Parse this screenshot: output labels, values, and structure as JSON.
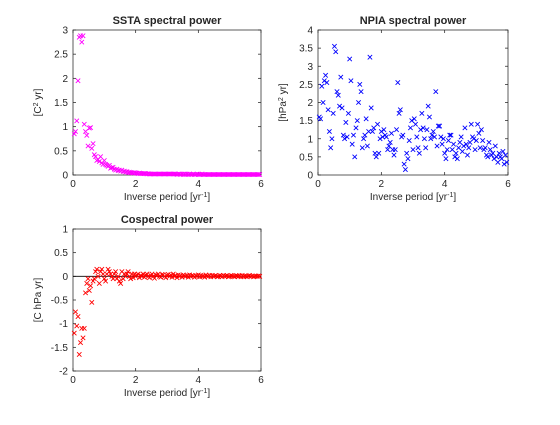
{
  "chart_data": [
    {
      "type": "scatter",
      "marker": "x",
      "title": "SSTA spectral power",
      "ylabel": "[C² yr]",
      "xlabel": "Inverse period [yr⁻¹]",
      "xlim": [
        0,
        6
      ],
      "ylim": [
        0,
        3
      ],
      "xticks": [
        "0",
        "2",
        "4",
        "6"
      ],
      "yticks": [
        "0",
        "0.5",
        "1",
        "1.5",
        "2",
        "2.5",
        "3"
      ],
      "grid": false,
      "color": "#ff00ff",
      "series": [
        {
          "x": [
            0.04,
            0.08,
            0.12,
            0.16,
            0.2,
            0.24,
            0.28,
            0.32,
            0.36,
            0.4,
            0.44,
            0.48,
            0.52,
            0.56,
            0.6,
            0.64,
            0.68,
            0.72,
            0.76,
            0.8,
            0.84,
            0.88,
            0.92,
            0.96,
            1.0,
            1.04,
            1.08,
            1.12,
            1.16,
            1.2,
            1.24,
            1.28,
            1.32,
            1.36,
            1.4,
            1.44,
            1.48,
            1.52,
            1.56,
            1.6,
            1.64,
            1.68,
            1.72,
            1.76,
            1.8,
            1.84,
            1.88,
            1.92,
            1.96,
            2.0,
            2.04,
            2.08,
            2.12,
            2.16,
            2.2,
            2.24,
            2.28,
            2.32,
            2.36,
            2.4,
            2.44,
            2.48,
            2.52,
            2.56,
            2.6,
            2.64,
            2.68,
            2.72,
            2.76,
            2.8,
            2.84,
            2.88,
            2.92,
            2.96,
            3.0,
            3.04,
            3.08,
            3.12,
            3.16,
            3.2,
            3.24,
            3.28,
            3.32,
            3.36,
            3.4,
            3.44,
            3.48,
            3.52,
            3.56,
            3.6,
            3.64,
            3.68,
            3.72,
            3.76,
            3.8,
            3.84,
            3.88,
            3.92,
            3.96,
            4.0,
            4.04,
            4.08,
            4.12,
            4.16,
            4.2,
            4.24,
            4.28,
            4.32,
            4.36,
            4.4,
            4.44,
            4.48,
            4.52,
            4.56,
            4.6,
            4.64,
            4.68,
            4.72,
            4.76,
            4.8,
            4.84,
            4.88,
            4.92,
            4.96,
            5.0,
            5.04,
            5.08,
            5.12,
            5.16,
            5.2,
            5.24,
            5.28,
            5.32,
            5.36,
            5.4,
            5.44,
            5.48,
            5.52,
            5.56,
            5.6,
            5.64,
            5.68,
            5.72,
            5.76,
            5.8,
            5.84,
            5.88,
            5.92,
            5.96
          ],
          "y": [
            0.85,
            0.9,
            1.12,
            1.95,
            2.85,
            2.88,
            2.75,
            2.88,
            1.05,
            0.9,
            0.82,
            0.6,
            0.97,
            0.98,
            0.55,
            0.65,
            0.42,
            0.38,
            0.3,
            0.32,
            0.28,
            0.38,
            0.25,
            0.22,
            0.3,
            0.22,
            0.2,
            0.18,
            0.2,
            0.14,
            0.15,
            0.16,
            0.12,
            0.1,
            0.12,
            0.09,
            0.1,
            0.08,
            0.1,
            0.07,
            0.08,
            0.06,
            0.07,
            0.05,
            0.06,
            0.05,
            0.05,
            0.04,
            0.05,
            0.04,
            0.04,
            0.03,
            0.04,
            0.03,
            0.03,
            0.03,
            0.03,
            0.03,
            0.02,
            0.03,
            0.02,
            0.02,
            0.02,
            0.02,
            0.02,
            0.02,
            0.02,
            0.02,
            0.02,
            0.02,
            0.02,
            0.02,
            0.02,
            0.02,
            0.02,
            0.02,
            0.02,
            0.02,
            0.02,
            0.02,
            0.02,
            0.02,
            0.01,
            0.02,
            0.02,
            0.01,
            0.02,
            0.01,
            0.02,
            0.01,
            0.02,
            0.01,
            0.02,
            0.01,
            0.01,
            0.02,
            0.01,
            0.01,
            0.02,
            0.01,
            0.01,
            0.01,
            0.02,
            0.01,
            0.01,
            0.01,
            0.01,
            0.01,
            0.01,
            0.01,
            0.01,
            0.01,
            0.01,
            0.01,
            0.01,
            0.01,
            0.01,
            0.01,
            0.01,
            0.01,
            0.01,
            0.01,
            0.01,
            0.01,
            0.01,
            0.01,
            0.01,
            0.01,
            0.01,
            0.01,
            0.01,
            0.01,
            0.01,
            0.01,
            0.01,
            0.01,
            0.01,
            0.01,
            0.01,
            0.01,
            0.01,
            0.01,
            0.01,
            0.01,
            0.01,
            0.01,
            0.01,
            0.01,
            0.01
          ]
        }
      ]
    },
    {
      "type": "scatter",
      "marker": "x",
      "title": "NPIA spectral power",
      "ylabel": "[hPa² yr]",
      "xlabel": "Inverse period [yr⁻¹]",
      "xlim": [
        0,
        6
      ],
      "ylim": [
        0,
        4
      ],
      "xticks": [
        "0",
        "2",
        "4",
        "6"
      ],
      "yticks": [
        "0",
        "0.5",
        "1",
        "1.5",
        "2",
        "2.5",
        "3",
        "3.5",
        "4"
      ],
      "grid": false,
      "color": "#0000ff",
      "series": [
        {
          "x": [
            0.04,
            0.08,
            0.12,
            0.16,
            0.2,
            0.24,
            0.28,
            0.32,
            0.36,
            0.4,
            0.44,
            0.48,
            0.52,
            0.56,
            0.6,
            0.64,
            0.68,
            0.72,
            0.76,
            0.8,
            0.84,
            0.88,
            0.92,
            0.96,
            1.0,
            1.04,
            1.08,
            1.12,
            1.16,
            1.2,
            1.24,
            1.28,
            1.32,
            1.36,
            1.4,
            1.44,
            1.48,
            1.52,
            1.56,
            1.6,
            1.64,
            1.68,
            1.72,
            1.76,
            1.8,
            1.84,
            1.88,
            1.92,
            1.96,
            2.0,
            2.04,
            2.08,
            2.12,
            2.16,
            2.2,
            2.24,
            2.28,
            2.32,
            2.36,
            2.4,
            2.44,
            2.48,
            2.52,
            2.56,
            2.6,
            2.64,
            2.68,
            2.72,
            2.76,
            2.8,
            2.84,
            2.88,
            2.92,
            2.96,
            3.0,
            3.04,
            3.08,
            3.12,
            3.16,
            3.2,
            3.24,
            3.28,
            3.32,
            3.36,
            3.4,
            3.44,
            3.48,
            3.52,
            3.56,
            3.6,
            3.64,
            3.68,
            3.72,
            3.76,
            3.8,
            3.84,
            3.88,
            3.92,
            3.96,
            4.0,
            4.04,
            4.08,
            4.12,
            4.16,
            4.2,
            4.24,
            4.28,
            4.32,
            4.36,
            4.4,
            4.44,
            4.48,
            4.52,
            4.56,
            4.6,
            4.64,
            4.68,
            4.72,
            4.76,
            4.8,
            4.84,
            4.88,
            4.92,
            4.96,
            5.0,
            5.04,
            5.08,
            5.12,
            5.16,
            5.2,
            5.24,
            5.28,
            5.32,
            5.36,
            5.4,
            5.44,
            5.48,
            5.52,
            5.56,
            5.6,
            5.64,
            5.68,
            5.72,
            5.76,
            5.8,
            5.84,
            5.88,
            5.92,
            5.96
          ],
          "y": [
            1.6,
            1.55,
            2.45,
            2.0,
            2.6,
            2.75,
            2.55,
            1.8,
            1.2,
            0.75,
            1.0,
            1.7,
            3.55,
            3.4,
            2.3,
            2.2,
            1.9,
            2.7,
            1.85,
            1.1,
            1.0,
            1.45,
            1.05,
            1.7,
            3.2,
            2.6,
            0.85,
            1.1,
            0.5,
            1.3,
            1.5,
            2.0,
            2.5,
            2.3,
            0.75,
            1.0,
            1.1,
            1.55,
            0.8,
            1.2,
            3.25,
            1.85,
            1.2,
            1.3,
            0.6,
            0.5,
            1.4,
            0.6,
            1.0,
            1.2,
            1.05,
            1.25,
            1.1,
            1.05,
            0.7,
            0.8,
            0.9,
            1.15,
            0.7,
            0.55,
            0.7,
            1.25,
            2.55,
            1.7,
            1.8,
            1.05,
            1.1,
            0.3,
            0.15,
            0.6,
            0.45,
            0.95,
            1.3,
            1.5,
            0.7,
            1.55,
            1.4,
            1.05,
            0.75,
            0.6,
            1.25,
            1.7,
            1.3,
            1.0,
            0.75,
            1.25,
            1.9,
            1.6,
            1.0,
            1.1,
            1.2,
            1.05,
            2.3,
            0.8,
            1.35,
            1.35,
            1.05,
            0.85,
            1.0,
            0.6,
            0.45,
            0.7,
            0.95,
            1.1,
            1.1,
            0.7,
            0.85,
            0.5,
            0.6,
            0.45,
            0.75,
            0.9,
            1.05,
            0.65,
            0.8,
            1.3,
            0.85,
            0.55,
            0.75,
            0.9,
            1.4,
            1.05,
            1.0,
            0.7,
            0.95,
            1.4,
            1.15,
            0.75,
            1.25,
            0.95,
            0.7,
            0.75,
            0.55,
            0.5,
            0.9,
            0.7,
            0.55,
            0.6,
            0.45,
            0.8,
            0.5,
            0.35,
            0.6,
            0.5,
            0.45,
            0.65,
            0.3,
            0.55,
            0.35
          ]
        }
      ]
    },
    {
      "type": "scatter",
      "marker": "x",
      "title": "Cospectral power",
      "ylabel": "[C hPa yr]",
      "xlabel": "Inverse period [yr⁻¹]",
      "xlim": [
        0,
        6
      ],
      "ylim": [
        -2,
        1
      ],
      "xticks": [
        "0",
        "2",
        "4",
        "6"
      ],
      "yticks": [
        "-2",
        "-1.5",
        "-1",
        "-0.5",
        "0",
        "0.5",
        "1"
      ],
      "grid": false,
      "color": "#ff0000",
      "reference_line": {
        "y": 0,
        "color": "#000000"
      },
      "series": [
        {
          "x": [
            0.04,
            0.08,
            0.12,
            0.16,
            0.2,
            0.24,
            0.28,
            0.32,
            0.36,
            0.4,
            0.44,
            0.48,
            0.52,
            0.56,
            0.6,
            0.64,
            0.68,
            0.72,
            0.76,
            0.8,
            0.84,
            0.88,
            0.92,
            0.96,
            1.0,
            1.04,
            1.08,
            1.12,
            1.16,
            1.2,
            1.24,
            1.28,
            1.32,
            1.36,
            1.4,
            1.44,
            1.48,
            1.52,
            1.56,
            1.6,
            1.64,
            1.68,
            1.72,
            1.76,
            1.8,
            1.84,
            1.88,
            1.92,
            1.96,
            2.0,
            2.04,
            2.08,
            2.12,
            2.16,
            2.2,
            2.24,
            2.28,
            2.32,
            2.36,
            2.4,
            2.44,
            2.48,
            2.52,
            2.56,
            2.6,
            2.64,
            2.68,
            2.72,
            2.76,
            2.8,
            2.84,
            2.88,
            2.92,
            2.96,
            3.0,
            3.04,
            3.08,
            3.12,
            3.16,
            3.2,
            3.24,
            3.28,
            3.32,
            3.36,
            3.4,
            3.44,
            3.48,
            3.52,
            3.56,
            3.6,
            3.64,
            3.68,
            3.72,
            3.76,
            3.8,
            3.84,
            3.88,
            3.92,
            3.96,
            4.0,
            4.04,
            4.08,
            4.12,
            4.16,
            4.2,
            4.24,
            4.28,
            4.32,
            4.36,
            4.4,
            4.44,
            4.48,
            4.52,
            4.56,
            4.6,
            4.64,
            4.68,
            4.72,
            4.76,
            4.8,
            4.84,
            4.88,
            4.92,
            4.96,
            5.0,
            5.04,
            5.08,
            5.12,
            5.16,
            5.2,
            5.24,
            5.28,
            5.32,
            5.36,
            5.4,
            5.44,
            5.48,
            5.52,
            5.56,
            5.6,
            5.64,
            5.68,
            5.72,
            5.76,
            5.8,
            5.84,
            5.88,
            5.92,
            5.96
          ],
          "y": [
            -1.2,
            -0.75,
            -1.05,
            -0.85,
            -1.65,
            -1.4,
            -1.1,
            -1.3,
            -1.1,
            -0.35,
            -0.15,
            -0.05,
            -0.3,
            -0.2,
            -0.55,
            -0.1,
            -0.05,
            0.1,
            0.15,
            0.0,
            -0.15,
            0.1,
            0.15,
            0.05,
            -0.05,
            -0.1,
            0.05,
            0.15,
            0.1,
            0.05,
            0.0,
            -0.05,
            0.05,
            0.1,
            -0.05,
            0.0,
            -0.1,
            -0.15,
            0.1,
            -0.05,
            0.05,
            0.0,
            0.05,
            0.1,
            0.0,
            -0.05,
            0.05,
            -0.03,
            0.05,
            0.0,
            0.03,
            0.05,
            -0.03,
            0.02,
            0.0,
            0.05,
            -0.02,
            0.03,
            0.05,
            0.0,
            -0.03,
            0.02,
            0.05,
            0.0,
            -0.04,
            0.03,
            0.02,
            0.05,
            0.0,
            -0.02,
            0.04,
            0.03,
            0.0,
            -0.03,
            0.02,
            0.04,
            0.0,
            0.03,
            -0.02,
            0.05,
            0.0,
            0.02,
            -0.03,
            0.03,
            0.0,
            0.02,
            -0.02,
            0.03,
            0.01,
            0.0,
            0.02,
            -0.02,
            0.03,
            0.0,
            0.02,
            0.01,
            -0.02,
            0.02,
            0.0,
            0.03,
            -0.01,
            0.02,
            0.0,
            0.01,
            -0.02,
            0.03,
            0.01,
            0.0,
            0.02,
            -0.01,
            0.02,
            0.0,
            0.01,
            0.02,
            -0.01,
            0.0,
            0.02,
            0.01,
            -0.01,
            0.02,
            0.0,
            0.01,
            0.02,
            -0.01,
            0.0,
            0.02,
            0.01,
            0.0,
            -0.01,
            0.02,
            0.01,
            0.0,
            0.01,
            -0.01,
            0.02,
            0.0,
            0.01,
            0.0,
            -0.01,
            0.01,
            0.02,
            0.0,
            0.01,
            -0.01,
            0.0,
            0.01,
            0.0,
            0.01,
            0.0
          ]
        }
      ]
    }
  ]
}
